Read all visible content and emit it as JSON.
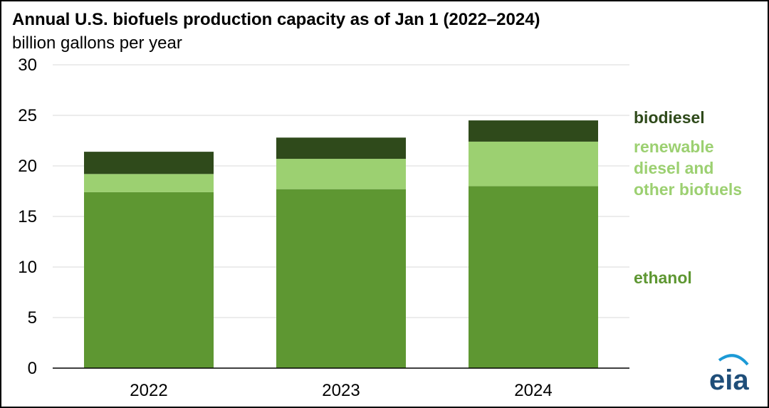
{
  "chart_data": {
    "type": "bar",
    "stacked": true,
    "title": "Annual U.S. biofuels production capacity as of Jan 1 (2022–2024)",
    "subtitle": "billion gallons per year",
    "categories": [
      "2022",
      "2023",
      "2024"
    ],
    "series": [
      {
        "name": "ethanol",
        "values": [
          17.4,
          17.7,
          18.0
        ],
        "color": "#5e9732"
      },
      {
        "name": "renewable diesel and other biofuels",
        "values": [
          1.8,
          3.0,
          4.4
        ],
        "color": "#9cd071"
      },
      {
        "name": "biodiesel",
        "values": [
          2.2,
          2.1,
          2.1
        ],
        "color": "#2f4a1b"
      }
    ],
    "ylim": [
      0,
      30
    ],
    "yticks": [
      0,
      5,
      10,
      15,
      20,
      25,
      30
    ],
    "grid": true,
    "legend_position": "right"
  },
  "legend_labels": {
    "biodiesel": [
      "biodiesel"
    ],
    "renewable": [
      "renewable",
      "diesel and",
      "other biofuels"
    ],
    "ethanol": [
      "ethanol"
    ]
  },
  "logo": {
    "text": "eia",
    "color": "#1f4e79",
    "accent": "#1c9ad6"
  }
}
